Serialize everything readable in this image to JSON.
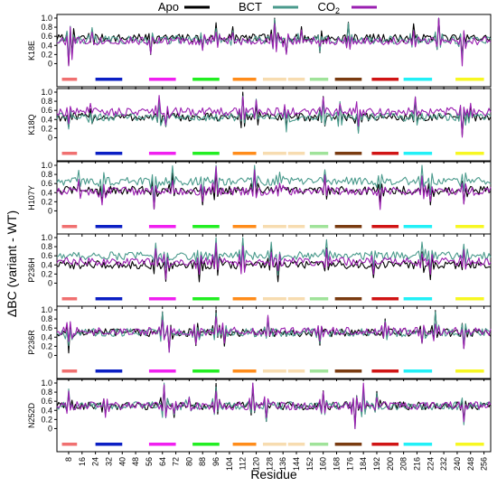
{
  "chart_data": {
    "type": "line",
    "xlabel": "Residue",
    "ylabel": "ΔBC (variant - WT)",
    "x_range": [
      1,
      260
    ],
    "x_ticks": [
      8,
      16,
      24,
      32,
      40,
      48,
      56,
      64,
      72,
      80,
      88,
      96,
      104,
      112,
      120,
      128,
      136,
      144,
      152,
      160,
      168,
      176,
      184,
      192,
      200,
      208,
      216,
      224,
      232,
      240,
      248,
      256
    ],
    "y_ticks": [
      0,
      0.2,
      0.4,
      0.6,
      0.8,
      1.0
    ],
    "y_tick_labels": [
      "0",
      "0.2",
      "0.4",
      "0.6",
      "0.8",
      "1.0"
    ],
    "ylim": [
      -0.15,
      1.0
    ],
    "legend": {
      "placement": "top",
      "entries": [
        {
          "name": "Apo",
          "color": "#000000"
        },
        {
          "name": "BCT",
          "color": "#4a9a8c"
        },
        {
          "name": "CO₂",
          "color": "#9a1fb0"
        }
      ]
    },
    "segments": [
      {
        "start": 4,
        "end": 13,
        "color": "#f07070"
      },
      {
        "start": 24,
        "end": 40,
        "color": "#0b1fc4"
      },
      {
        "start": 56,
        "end": 72,
        "color": "#f020f0"
      },
      {
        "start": 82,
        "end": 98,
        "color": "#22ee22"
      },
      {
        "start": 106,
        "end": 120,
        "color": "#ff8c1a"
      },
      {
        "start": 124,
        "end": 138,
        "color": "#f7dcb0"
      },
      {
        "start": 139,
        "end": 149,
        "color": "#f7dcb0"
      },
      {
        "start": 152,
        "end": 163,
        "color": "#a0e39a"
      },
      {
        "start": 167,
        "end": 183,
        "color": "#7a3b10"
      },
      {
        "start": 189,
        "end": 205,
        "color": "#d01414"
      },
      {
        "start": 208,
        "end": 225,
        "color": "#22f0f7"
      },
      {
        "start": 239,
        "end": 256,
        "color": "#f7f722"
      }
    ],
    "panels": [
      {
        "label": "K18E",
        "baselines": {
          "Apo": 0.56,
          "BCT": 0.52,
          "CO2": 0.5
        },
        "spikes": [
          [
            8,
            -0.45
          ],
          [
            10,
            -0.35
          ],
          [
            22,
            0.2
          ],
          [
            57,
            -0.3
          ],
          [
            88,
            -0.25
          ],
          [
            96,
            0.3
          ],
          [
            106,
            0.2
          ],
          [
            131,
            0.45
          ],
          [
            138,
            -0.25
          ],
          [
            147,
            0.25
          ],
          [
            158,
            -0.25
          ],
          [
            175,
            0.3
          ],
          [
            214,
            0.25
          ],
          [
            229,
            0.5
          ],
          [
            243,
            -0.5
          ]
        ]
      },
      {
        "label": "K18Q",
        "baselines": {
          "Apo": 0.45,
          "BCT": 0.45,
          "CO2": 0.57
        },
        "spikes": [
          [
            8,
            -0.3
          ],
          [
            21,
            0.2
          ],
          [
            62,
            0.3
          ],
          [
            66,
            -0.25
          ],
          [
            112,
            0.5
          ],
          [
            120,
            0.3
          ],
          [
            138,
            -0.25
          ],
          [
            160,
            0.4
          ],
          [
            170,
            0.3
          ],
          [
            181,
            -0.35
          ],
          [
            215,
            0.35
          ],
          [
            243,
            -0.4
          ],
          [
            248,
            0.2
          ]
        ]
      },
      {
        "label": "H107Y",
        "baselines": {
          "Apo": 0.45,
          "BCT": 0.65,
          "CO2": 0.43
        },
        "spikes": [
          [
            14,
            0.25
          ],
          [
            28,
            -0.3
          ],
          [
            59,
            -0.4
          ],
          [
            70,
            0.3
          ],
          [
            88,
            -0.35
          ],
          [
            96,
            0.45
          ],
          [
            119,
            0.35
          ],
          [
            134,
            0.2
          ],
          [
            161,
            0.3
          ],
          [
            194,
            -0.3
          ],
          [
            219,
            0.3
          ],
          [
            224,
            -0.35
          ],
          [
            244,
            -0.35
          ]
        ]
      },
      {
        "label": "P236H",
        "baselines": {
          "Apo": 0.4,
          "BCT": 0.6,
          "CO2": 0.47
        },
        "spikes": [
          [
            60,
            0.35
          ],
          [
            66,
            -0.35
          ],
          [
            86,
            -0.3
          ],
          [
            96,
            0.5
          ],
          [
            112,
            0.5
          ],
          [
            129,
            0.3
          ],
          [
            133,
            -0.3
          ],
          [
            162,
            0.3
          ],
          [
            190,
            -0.25
          ],
          [
            219,
            0.25
          ],
          [
            224,
            -0.35
          ],
          [
            244,
            0.3
          ]
        ]
      },
      {
        "label": "P236R",
        "baselines": {
          "Apo": 0.5,
          "BCT": 0.5,
          "CO2": 0.53
        },
        "spikes": [
          [
            8,
            -0.45
          ],
          [
            64,
            0.4
          ],
          [
            68,
            -0.35
          ],
          [
            84,
            -0.35
          ],
          [
            96,
            0.45
          ],
          [
            101,
            -0.25
          ],
          [
            127,
            0.25
          ],
          [
            158,
            -0.3
          ],
          [
            197,
            0.3
          ],
          [
            219,
            -0.3
          ],
          [
            227,
            0.4
          ],
          [
            244,
            -0.35
          ]
        ]
      },
      {
        "label": "N252D",
        "baselines": {
          "Apo": 0.5,
          "BCT": 0.5,
          "CO2": 0.5
        },
        "spikes": [
          [
            8,
            0.3
          ],
          [
            30,
            -0.25
          ],
          [
            65,
            0.5
          ],
          [
            71,
            -0.3
          ],
          [
            80,
            0.2
          ],
          [
            96,
            0.45
          ],
          [
            118,
            0.45
          ],
          [
            126,
            -0.3
          ],
          [
            160,
            0.3
          ],
          [
            179,
            -0.5
          ],
          [
            184,
            0.4
          ],
          [
            192,
            0.25
          ],
          [
            244,
            -0.3
          ]
        ]
      }
    ]
  }
}
